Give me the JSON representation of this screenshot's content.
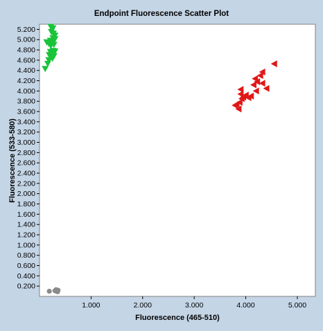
{
  "chart_data": {
    "type": "scatter",
    "title": "Endpoint Fluorescence Scatter Plot",
    "xlabel": "Fluorescence (465-510)",
    "ylabel": "Fluorescence (533-580)",
    "xlim": [
      0.0,
      5.35
    ],
    "ylim": [
      0.0,
      5.3
    ],
    "x_ticks": [
      "1.000",
      "2.000",
      "3.000",
      "4.000",
      "5.000"
    ],
    "x_tick_values": [
      1.0,
      2.0,
      3.0,
      4.0,
      5.0
    ],
    "y_ticks": [
      "0.200",
      "0.400",
      "0.600",
      "0.800",
      "1.000",
      "1.200",
      "1.400",
      "1.600",
      "1.800",
      "2.000",
      "2.200",
      "2.400",
      "2.600",
      "2.800",
      "3.000",
      "3.200",
      "3.400",
      "3.600",
      "3.800",
      "4.000",
      "4.200",
      "4.400",
      "4.600",
      "4.800",
      "5.000",
      "5.200"
    ],
    "y_tick_values": [
      0.2,
      0.4,
      0.6,
      0.8,
      1.0,
      1.2,
      1.4,
      1.6,
      1.8,
      2.0,
      2.2,
      2.4,
      2.6,
      2.8,
      3.0,
      3.2,
      3.4,
      3.6,
      3.8,
      4.0,
      4.2,
      4.4,
      4.6,
      4.8,
      5.0,
      5.2
    ],
    "grid": false,
    "legend": "none",
    "series": [
      {
        "marker": "triangle-down",
        "color": "#19c43a",
        "points": [
          [
            0.22,
            5.25
          ],
          [
            0.26,
            5.22
          ],
          [
            0.23,
            5.15
          ],
          [
            0.27,
            5.12
          ],
          [
            0.3,
            5.08
          ],
          [
            0.26,
            5.03
          ],
          [
            0.3,
            5.01
          ],
          [
            0.21,
            4.98
          ],
          [
            0.14,
            4.95
          ],
          [
            0.24,
            4.94
          ],
          [
            0.18,
            4.92
          ],
          [
            0.28,
            4.9
          ],
          [
            0.22,
            4.88
          ],
          [
            0.26,
            4.78
          ],
          [
            0.3,
            4.77
          ],
          [
            0.21,
            4.76
          ],
          [
            0.24,
            4.73
          ],
          [
            0.19,
            4.7
          ],
          [
            0.28,
            4.68
          ],
          [
            0.22,
            4.66
          ],
          [
            0.25,
            4.63
          ],
          [
            0.18,
            4.6
          ],
          [
            0.16,
            4.53
          ],
          [
            0.11,
            4.43
          ]
        ]
      },
      {
        "marker": "triangle-left",
        "color": "#e01818",
        "points": [
          [
            4.55,
            4.53
          ],
          [
            4.32,
            4.37
          ],
          [
            4.28,
            4.3
          ],
          [
            4.18,
            4.24
          ],
          [
            4.22,
            4.18
          ],
          [
            4.32,
            4.15
          ],
          [
            4.15,
            4.12
          ],
          [
            4.4,
            4.05
          ],
          [
            3.9,
            4.03
          ],
          [
            4.2,
            4.0
          ],
          [
            3.9,
            3.94
          ],
          [
            4.0,
            3.92
          ],
          [
            4.1,
            3.9
          ],
          [
            3.95,
            3.88
          ],
          [
            4.05,
            3.87
          ],
          [
            3.92,
            3.85
          ],
          [
            3.88,
            3.78
          ],
          [
            3.82,
            3.74
          ],
          [
            3.79,
            3.72
          ],
          [
            3.86,
            3.65
          ]
        ]
      },
      {
        "marker": "circle",
        "color": "#8a8a8a",
        "points": [
          [
            0.19,
            0.1
          ],
          [
            0.33,
            0.1
          ],
          [
            0.36,
            0.12
          ],
          [
            0.32,
            0.13
          ],
          [
            0.35,
            0.09
          ],
          [
            0.3,
            0.11
          ]
        ]
      }
    ]
  }
}
